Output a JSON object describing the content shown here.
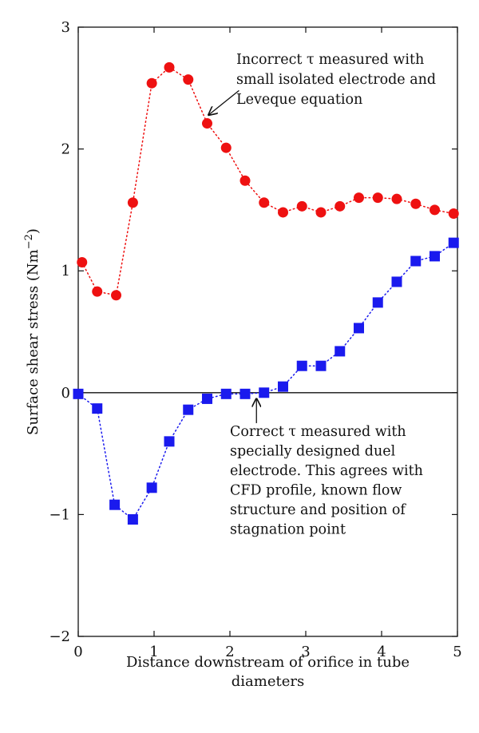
{
  "chart_data": {
    "type": "scatter",
    "xlabel_lines": [
      "Distance downstream of orifice in tube",
      "diameters"
    ],
    "ylabel": "Surface shear stress (Nm",
    "ylabel_sup": "−2",
    "ylabel_close": ")",
    "xlim": [
      0,
      5
    ],
    "ylim": [
      -2,
      3
    ],
    "x_ticks": [
      0,
      1,
      2,
      3,
      4,
      5
    ],
    "y_ticks": [
      -2,
      -1,
      0,
      1,
      2,
      3
    ],
    "x_tick_labels": [
      "0",
      "1",
      "2",
      "3",
      "4",
      "5"
    ],
    "y_tick_labels": [
      "−2",
      "−1",
      "0",
      "1",
      "2",
      "3"
    ],
    "zero_line": true,
    "series": [
      {
        "marker": "circle",
        "color": "#ee1111",
        "line_style": "dotted",
        "x": [
          0.05,
          0.25,
          0.5,
          0.72,
          0.97,
          1.2,
          1.45,
          1.7,
          1.95,
          2.2,
          2.45,
          2.7,
          2.95,
          3.2,
          3.45,
          3.7,
          3.95,
          4.2,
          4.45,
          4.7,
          4.95
        ],
        "y": [
          1.07,
          0.83,
          0.8,
          1.56,
          2.54,
          2.67,
          2.57,
          2.21,
          2.01,
          1.74,
          1.56,
          1.48,
          1.53,
          1.48,
          1.53,
          1.6,
          1.6,
          1.59,
          1.55,
          1.5,
          1.47
        ]
      },
      {
        "marker": "square",
        "color": "#1a1aee",
        "line_style": "dotted",
        "x": [
          0.0,
          0.25,
          0.48,
          0.72,
          0.97,
          1.2,
          1.45,
          1.7,
          1.95,
          2.2,
          2.45,
          2.7,
          2.95,
          3.2,
          3.45,
          3.7,
          3.95,
          4.2,
          4.45,
          4.7,
          4.95
        ],
        "y": [
          -0.01,
          -0.13,
          -0.92,
          -1.04,
          -0.78,
          -0.4,
          -0.14,
          -0.05,
          -0.01,
          -0.01,
          0.0,
          0.05,
          0.22,
          0.22,
          0.34,
          0.53,
          0.74,
          0.91,
          1.08,
          1.12,
          1.23
        ]
      }
    ],
    "annotations": [
      {
        "lines": [
          "Incorrect τ measured with",
          "small isolated electrode and",
          "Leveque equation"
        ],
        "arrow_target": [
          1.72,
          2.28
        ],
        "arrow_from": [
          2.12,
          2.48
        ]
      },
      {
        "lines": [
          "Correct τ measured with",
          "specially designed duel",
          "electrode. This agrees with",
          "CFD profile, known flow",
          "structure and position of",
          "stagnation point"
        ],
        "arrow_target": [
          2.35,
          -0.05
        ],
        "arrow_from": [
          2.35,
          -0.25
        ]
      }
    ]
  }
}
